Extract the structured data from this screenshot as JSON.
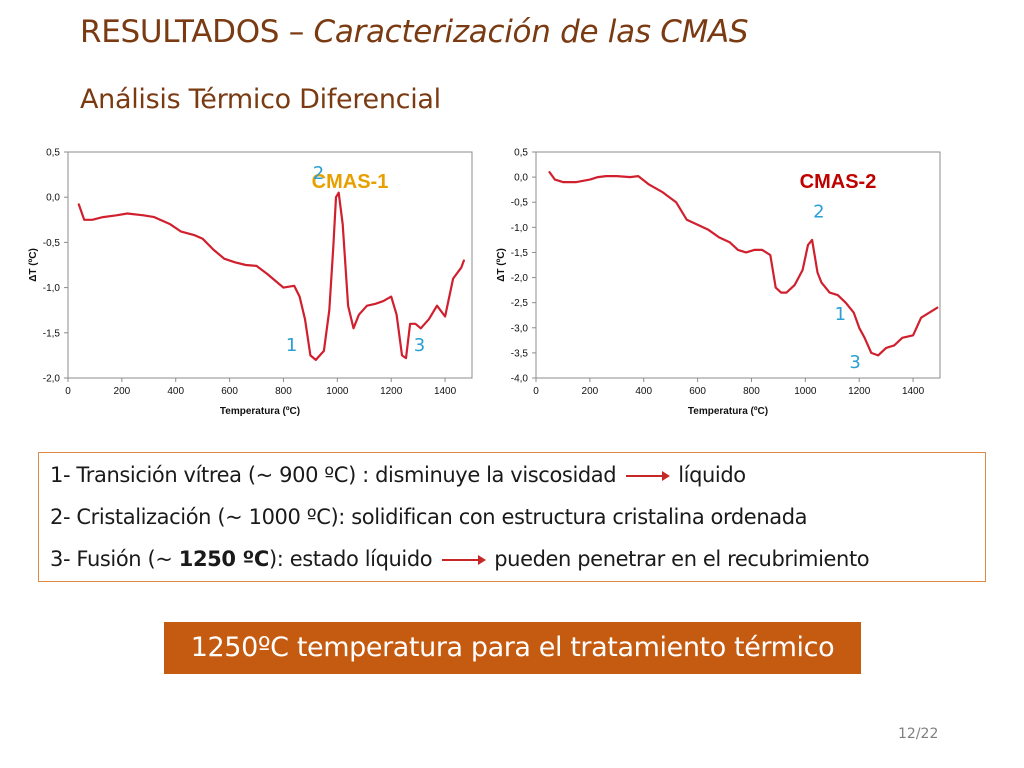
{
  "slide": {
    "title_main": "RESULTADOS – ",
    "title_italic": "Caracterización de las CMAS",
    "subtitle": "Análisis Térmico Diferencial",
    "page_number": "12/22"
  },
  "notes": {
    "line1_a": "1- Transición vítrea (~ 900 ºC) : disminuye la viscosidad",
    "line1_b": "líquido",
    "line2": "2- Cristalización (~ 1000 ºC): solidifican con estructura cristalina ordenada",
    "line3_a": "3- Fusión (~ ",
    "line3_bold": "1250 ºC",
    "line3_c": "): estado líquido",
    "line3_d": "pueden penetrar en el recubrimiento"
  },
  "highlight_text": "1250ºC temperatura para el tratamiento térmico",
  "colors": {
    "title": "#7a3a12",
    "curve": "#d0202e",
    "peak_labels": "#2a9fd6",
    "cmas1_legend": "#e8a000",
    "cmas2_legend": "#c00000",
    "box_border": "#e08a48",
    "highlight_bg": "#c55a11"
  },
  "chart_data": [
    {
      "type": "line",
      "legend_label": "CMAS-1",
      "xlabel": "Temperatura (ºC)",
      "ylabel": "ΔT (ºC)",
      "xlim": [
        0,
        1500
      ],
      "ylim": [
        -2.0,
        0.5
      ],
      "xticks": [
        0,
        200,
        400,
        600,
        800,
        1000,
        1200,
        1400
      ],
      "xtick_labels": [
        "0",
        "200",
        "400",
        "600",
        "800",
        "1000",
        "1200",
        "1400"
      ],
      "yticks": [
        0.5,
        0.0,
        -0.5,
        -1.0,
        -1.5,
        -2.0
      ],
      "ytick_labels": [
        "0,5",
        "0,0",
        "-0,5",
        "-1,0",
        "-1,5",
        "-2,0"
      ],
      "x": [
        40,
        60,
        90,
        130,
        180,
        220,
        280,
        320,
        380,
        420,
        470,
        500,
        540,
        580,
        620,
        660,
        700,
        740,
        780,
        800,
        840,
        860,
        880,
        900,
        920,
        950,
        970,
        985,
        995,
        1005,
        1020,
        1040,
        1060,
        1080,
        1110,
        1140,
        1170,
        1200,
        1220,
        1240,
        1255,
        1270,
        1290,
        1310,
        1340,
        1370,
        1400,
        1430,
        1460,
        1470
      ],
      "y": [
        -0.08,
        -0.25,
        -0.25,
        -0.22,
        -0.2,
        -0.18,
        -0.2,
        -0.22,
        -0.3,
        -0.38,
        -0.42,
        -0.46,
        -0.58,
        -0.68,
        -0.72,
        -0.75,
        -0.76,
        -0.85,
        -0.95,
        -1.0,
        -0.98,
        -1.1,
        -1.35,
        -1.75,
        -1.8,
        -1.7,
        -1.25,
        -0.55,
        0.0,
        0.05,
        -0.3,
        -1.2,
        -1.45,
        -1.3,
        -1.2,
        -1.18,
        -1.15,
        -1.1,
        -1.3,
        -1.75,
        -1.78,
        -1.4,
        -1.4,
        -1.45,
        -1.35,
        -1.2,
        -1.32,
        -0.9,
        -0.78,
        -0.7
      ],
      "peaks": [
        {
          "label": "1",
          "x": 830,
          "y": -1.7
        },
        {
          "label": "2",
          "x": 930,
          "y": 0.2
        },
        {
          "label": "3",
          "x": 1305,
          "y": -1.7
        }
      ]
    },
    {
      "type": "line",
      "legend_label": "CMAS-2",
      "xlabel": "Temperatura (ºC)",
      "ylabel": "ΔT (ºC)",
      "xlim": [
        0,
        1500
      ],
      "ylim": [
        -4.0,
        0.5
      ],
      "xticks": [
        0,
        200,
        400,
        600,
        800,
        1000,
        1200,
        1400
      ],
      "xtick_labels": [
        "0",
        "200",
        "400",
        "600",
        "800",
        "1000",
        "1200",
        "1400"
      ],
      "yticks": [
        0.5,
        0.0,
        -0.5,
        -1.0,
        -1.5,
        -2.0,
        -2.5,
        -3.0,
        -3.5,
        -4.0
      ],
      "ytick_labels": [
        "0,5",
        "0,0",
        "-0,5",
        "-1,0",
        "-1,5",
        "-2,0",
        "-2,5",
        "-3,0",
        "-3,5",
        "-4,0"
      ],
      "x": [
        50,
        70,
        100,
        150,
        200,
        230,
        260,
        300,
        350,
        380,
        420,
        470,
        520,
        560,
        600,
        640,
        680,
        720,
        750,
        780,
        810,
        840,
        870,
        890,
        910,
        930,
        960,
        990,
        1010,
        1025,
        1045,
        1060,
        1090,
        1120,
        1150,
        1180,
        1200,
        1220,
        1245,
        1270,
        1300,
        1330,
        1360,
        1400,
        1430,
        1460,
        1490
      ],
      "y": [
        0.1,
        -0.05,
        -0.1,
        -0.1,
        -0.05,
        0.0,
        0.02,
        0.02,
        0.0,
        0.02,
        -0.15,
        -0.3,
        -0.5,
        -0.85,
        -0.95,
        -1.05,
        -1.2,
        -1.3,
        -1.45,
        -1.5,
        -1.45,
        -1.45,
        -1.55,
        -2.2,
        -2.3,
        -2.3,
        -2.15,
        -1.85,
        -1.35,
        -1.25,
        -1.9,
        -2.1,
        -2.3,
        -2.35,
        -2.5,
        -2.7,
        -3.0,
        -3.2,
        -3.5,
        -3.55,
        -3.4,
        -3.35,
        -3.2,
        -3.15,
        -2.8,
        -2.7,
        -2.6
      ],
      "peaks": [
        {
          "label": "1",
          "x": 1130,
          "y": -2.85
        },
        {
          "label": "2",
          "x": 1050,
          "y": -0.8
        },
        {
          "label": "3",
          "x": 1185,
          "y": -3.8
        }
      ]
    }
  ]
}
